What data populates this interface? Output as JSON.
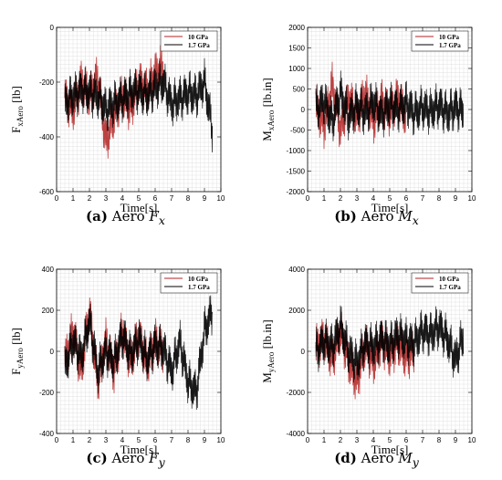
{
  "chart_data": [
    {
      "type": "line",
      "caption": {
        "tag": "(a)",
        "text": "Aero",
        "sym": "F",
        "sub": "x"
      },
      "ylabel": {
        "main": "F",
        "sub": "xAero",
        "unit": "[lb]"
      },
      "xlabel": "Time[s]",
      "xlim": [
        0,
        10
      ],
      "ylim": [
        -600,
        0
      ],
      "xticks": [
        0,
        1,
        2,
        3,
        4,
        5,
        6,
        7,
        8,
        9,
        10
      ],
      "yticks": [
        -600,
        -400,
        -200,
        0
      ],
      "grid": true,
      "legend_position": "top-right",
      "series": [
        {
          "name": "10 GPa",
          "color": "#b22222",
          "x": [
            0.5,
            1.0,
            1.5,
            2.0,
            2.5,
            3.0,
            3.5,
            4.0,
            4.5,
            5.0,
            5.5,
            6.0,
            6.5
          ],
          "y": [
            -260,
            -300,
            -200,
            -250,
            -180,
            -420,
            -320,
            -250,
            -300,
            -200,
            -230,
            -170,
            -140
          ]
        },
        {
          "name": "1.7 GPa",
          "color": "#000000",
          "x": [
            0.5,
            1.0,
            1.5,
            2.0,
            2.5,
            3.0,
            3.5,
            4.0,
            4.5,
            5.0,
            5.5,
            6.0,
            6.5,
            7.0,
            7.5,
            8.0,
            8.5,
            9.0,
            9.5
          ],
          "y": [
            -280,
            -250,
            -230,
            -240,
            -250,
            -300,
            -280,
            -260,
            -240,
            -230,
            -250,
            -220,
            -200,
            -280,
            -260,
            -240,
            -250,
            -200,
            -380
          ]
        }
      ]
    },
    {
      "type": "line",
      "caption": {
        "tag": "(b)",
        "text": "Aero",
        "sym": "M",
        "sub": "x"
      },
      "ylabel": {
        "main": "M",
        "sub": "xAero",
        "unit": "[lb.in]"
      },
      "xlabel": "Time[s]",
      "xlim": [
        0,
        10
      ],
      "ylim": [
        -2000,
        2000
      ],
      "xticks": [
        0,
        1,
        2,
        3,
        4,
        5,
        6,
        7,
        8,
        9,
        10
      ],
      "yticks": [
        -2000,
        -1500,
        -1000,
        -500,
        0,
        500,
        1000,
        1500,
        2000
      ],
      "grid": true,
      "legend_position": "top-right",
      "series": [
        {
          "name": "10 GPa",
          "color": "#b22222",
          "x": [
            0.5,
            1.0,
            1.5,
            2.0,
            2.5,
            3.0,
            3.5,
            4.0,
            4.5,
            5.0,
            5.5,
            6.0
          ],
          "y": [
            100,
            -400,
            600,
            -500,
            300,
            -200,
            400,
            -300,
            200,
            -100,
            300,
            -200
          ]
        },
        {
          "name": "1.7 GPa",
          "color": "#000000",
          "x": [
            0.5,
            1.0,
            1.5,
            2.0,
            2.5,
            3.0,
            3.5,
            4.0,
            4.5,
            5.0,
            5.5,
            6.0,
            6.5,
            7.0,
            7.5,
            8.0,
            8.5,
            9.0,
            9.5
          ],
          "y": [
            0,
            200,
            -300,
            400,
            -200,
            100,
            -100,
            200,
            -150,
            100,
            0,
            150,
            -100,
            50,
            -50,
            100,
            -100,
            50,
            -50
          ]
        }
      ]
    },
    {
      "type": "line",
      "caption": {
        "tag": "(c)",
        "text": "Aero",
        "sym": "F",
        "sub": "y"
      },
      "ylabel": {
        "main": "F",
        "sub": "yAero",
        "unit": "[lb]"
      },
      "xlabel": "Time[s]",
      "xlim": [
        0,
        10
      ],
      "ylim": [
        -400,
        400
      ],
      "xticks": [
        0,
        1,
        2,
        3,
        4,
        5,
        6,
        7,
        8,
        9,
        10
      ],
      "yticks": [
        -400,
        -200,
        0,
        200,
        400
      ],
      "grid": true,
      "legend_position": "top-right",
      "series": [
        {
          "name": "10 GPa",
          "color": "#b22222",
          "x": [
            0.5,
            1.0,
            1.5,
            2.0,
            2.5,
            3.0,
            3.5,
            4.0,
            4.5,
            5.0,
            5.5,
            6.0,
            6.5
          ],
          "y": [
            -50,
            100,
            -100,
            200,
            -150,
            50,
            -100,
            100,
            -50,
            80,
            -60,
            50,
            0
          ]
        },
        {
          "name": "1.7 GPa",
          "color": "#000000",
          "x": [
            0.5,
            1.0,
            1.5,
            2.0,
            2.5,
            3.0,
            3.5,
            4.0,
            4.5,
            5.0,
            5.5,
            6.0,
            6.5,
            7.0,
            7.5,
            8.0,
            8.5,
            9.0,
            9.5
          ],
          "y": [
            -80,
            50,
            -30,
            150,
            -100,
            0,
            -50,
            80,
            -20,
            60,
            -40,
            30,
            10,
            -100,
            50,
            -150,
            -200,
            100,
            200
          ]
        }
      ]
    },
    {
      "type": "line",
      "caption": {
        "tag": "(d)",
        "text": "Aero",
        "sym": "M",
        "sub": "y"
      },
      "ylabel": {
        "main": "M",
        "sub": "yAero",
        "unit": "[lb.in]"
      },
      "xlabel": "Time[s]",
      "xlim": [
        0,
        10
      ],
      "ylim": [
        -4000,
        4000
      ],
      "xticks": [
        0,
        1,
        2,
        3,
        4,
        5,
        6,
        7,
        8,
        9,
        10
      ],
      "yticks": [
        -4000,
        -2000,
        0,
        2000,
        4000
      ],
      "grid": true,
      "legend_position": "top-right",
      "series": [
        {
          "name": "10 GPa",
          "color": "#b22222",
          "x": [
            0.5,
            1.0,
            1.5,
            2.0,
            2.5,
            3.0,
            3.5,
            4.0,
            4.5,
            5.0,
            5.5,
            6.0,
            6.5
          ],
          "y": [
            200,
            600,
            -400,
            1000,
            -500,
            -1500,
            300,
            -600,
            500,
            -200,
            400,
            -300,
            0
          ]
        },
        {
          "name": "1.7 GPa",
          "color": "#000000",
          "x": [
            0.5,
            1.0,
            1.5,
            2.0,
            2.5,
            3.0,
            3.5,
            4.0,
            4.5,
            5.0,
            5.5,
            6.0,
            6.5,
            7.0,
            7.5,
            8.0,
            8.5,
            9.0,
            9.5
          ],
          "y": [
            0,
            500,
            200,
            1200,
            0,
            -600,
            400,
            200,
            600,
            300,
            800,
            500,
            400,
            1000,
            800,
            1200,
            600,
            -400,
            800
          ]
        }
      ]
    }
  ]
}
